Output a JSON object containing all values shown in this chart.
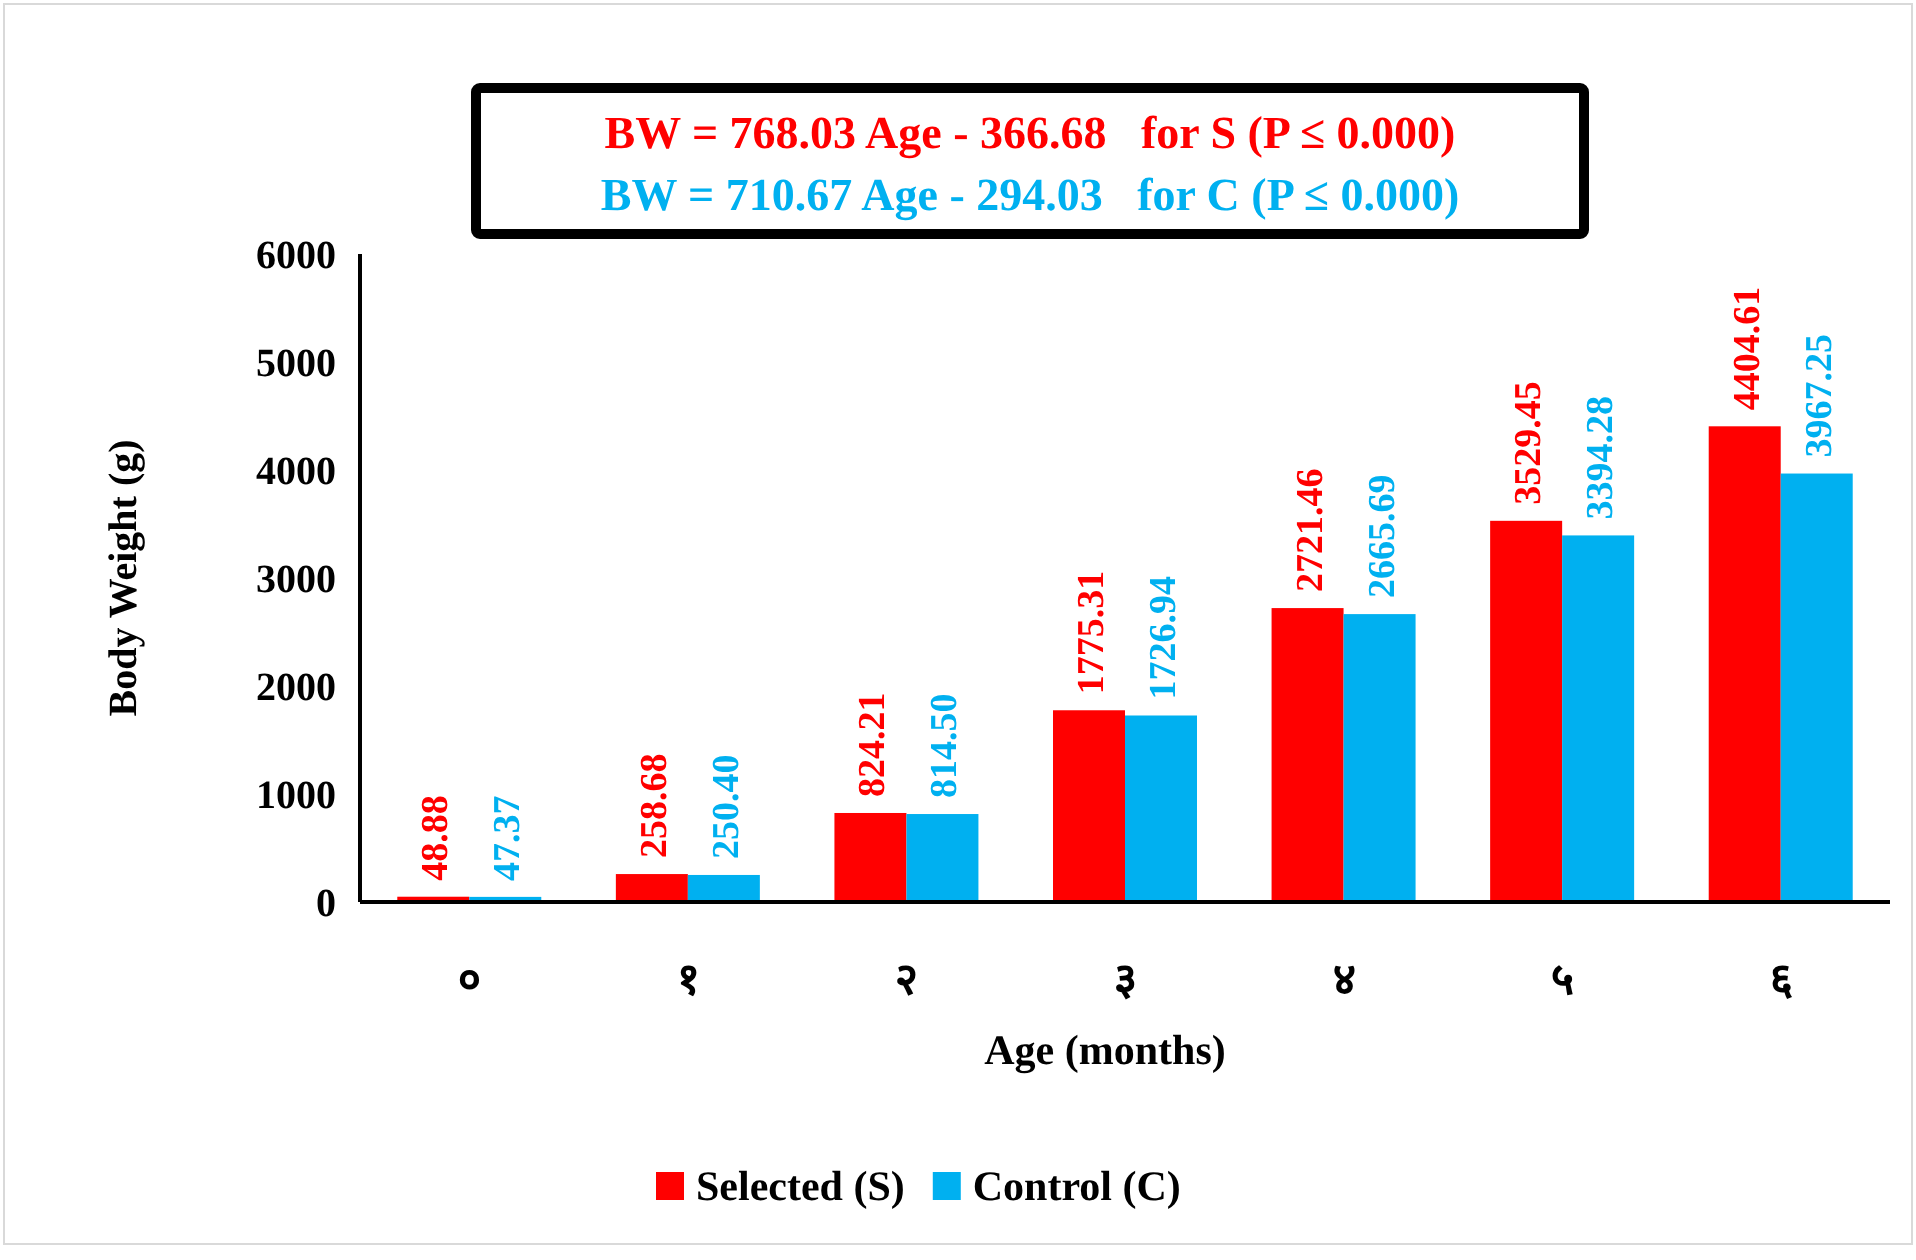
{
  "chart_data": {
    "type": "bar",
    "categories": [
      "०",
      "१",
      "२",
      "३",
      "४",
      "५",
      "६"
    ],
    "series": [
      {
        "name": "Selected (S)",
        "color": "#ff0000",
        "values": [
          48.88,
          258.68,
          824.21,
          1775.31,
          2721.46,
          3529.45,
          4404.61
        ],
        "value_labels": [
          "48.88",
          "258.68",
          "824.21",
          "1775.31",
          "2721.46",
          "3529.45",
          "4404.61"
        ]
      },
      {
        "name": "Control (C)",
        "color": "#00b0f0",
        "values": [
          47.37,
          250.4,
          814.5,
          1726.94,
          2665.69,
          3394.28,
          3967.25
        ],
        "value_labels": [
          "47.37",
          "250.40",
          "814.50",
          "1726.94",
          "2665.69",
          "3394.28",
          "3967.25"
        ]
      }
    ],
    "xlabel": "Age (months)",
    "ylabel": "Body Weight (g)",
    "ylim": [
      0,
      6000
    ],
    "yticks": [
      0,
      1000,
      2000,
      3000,
      4000,
      5000,
      6000
    ],
    "legend": "bottom",
    "annotations": [
      "BW = 768.03 Age - 366.68   for S (P ≤ 0.000)",
      "BW = 710.67 Age - 294.03   for C (P ≤ 0.000)"
    ]
  }
}
